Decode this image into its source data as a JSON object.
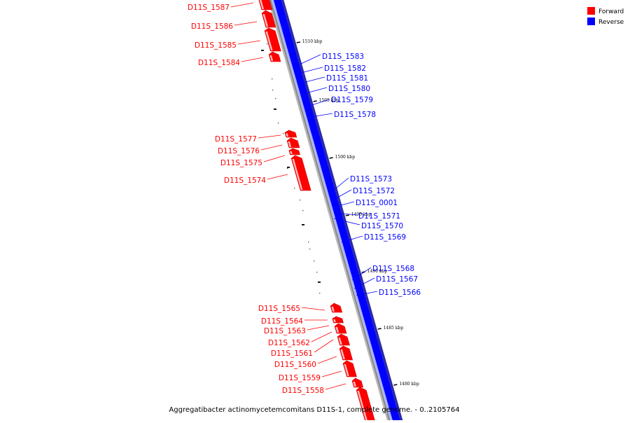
{
  "caption": "Aggregatibacter actinomycetemcomitans D11S-1, complete genome. - 0..2105764",
  "legend": [
    {
      "label": "Forward",
      "color": "#ff0000"
    },
    {
      "label": "Reverse",
      "color": "#0000ff"
    }
  ],
  "colors": {
    "forward": "#ff0000",
    "reverse": "#0000ff",
    "backbone": "#888888"
  },
  "ticks": [
    "1510 kbp",
    "1505 kbp",
    "1500 kbp",
    "1495 kbp",
    "1490 kbp",
    "1485 kbp",
    "1480 kbp"
  ],
  "forward_genes": [
    "D11S_1587",
    "D11S_1586",
    "D11S_1585",
    "D11S_1584",
    "D11S_1577",
    "D11S_1576",
    "D11S_1575",
    "D11S_1574",
    "D11S_1565",
    "D11S_1564",
    "D11S_1563",
    "D11S_1562",
    "D11S_1561",
    "D11S_1560",
    "D11S_1559",
    "D11S_1558"
  ],
  "reverse_genes": [
    "D11S_1583",
    "D11S_1582",
    "D11S_1581",
    "D11S_1580",
    "D11S_1579",
    "D11S_1578",
    "D11S_1573",
    "D11S_1572",
    "D11S_0001",
    "D11S_1571",
    "D11S_1570",
    "D11S_1569",
    "D11S_1568",
    "D11S_1567",
    "D11S_1566"
  ]
}
